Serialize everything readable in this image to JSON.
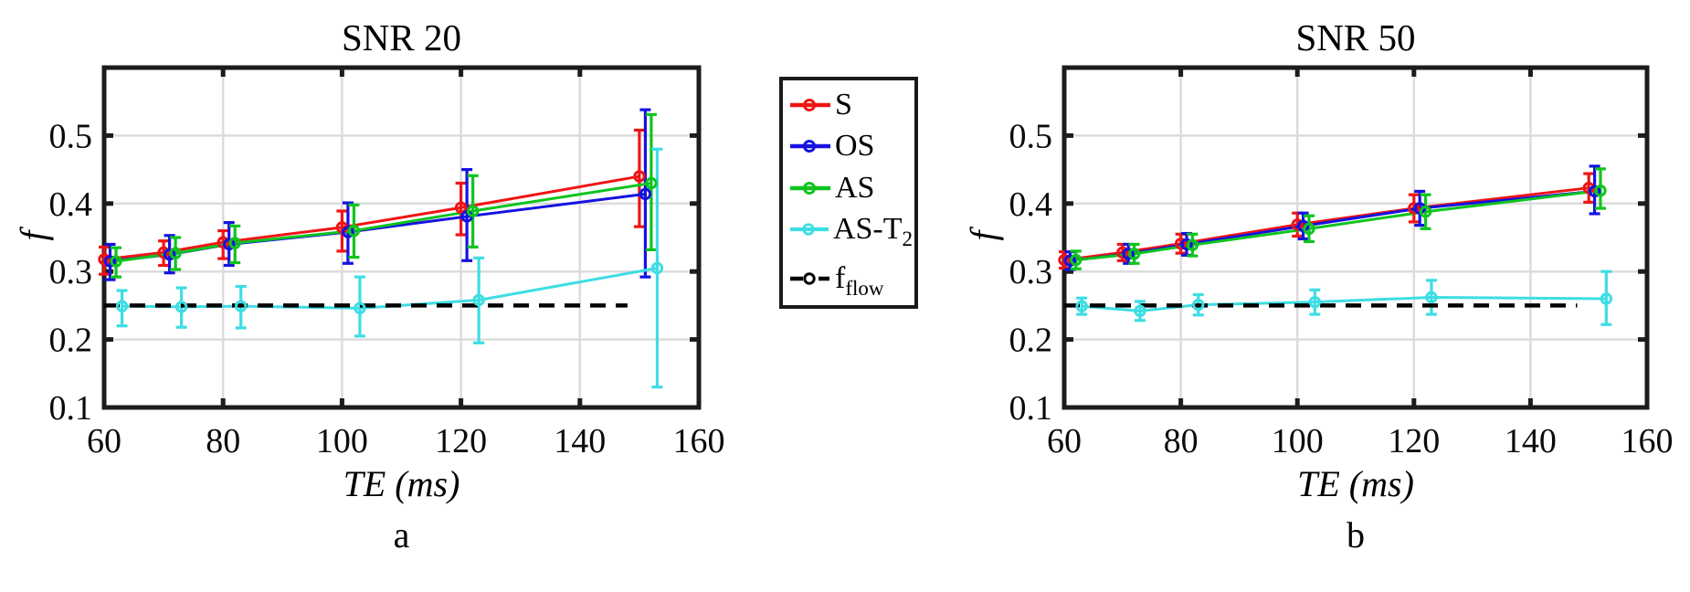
{
  "figure": {
    "background": "#ffffff",
    "grid_color": "#dcdcdc",
    "spine_color": "#1c1c1c"
  },
  "legend": {
    "items": [
      {
        "name": "S",
        "label": "S",
        "sub": "",
        "color": "#f01414",
        "line_style": "solid"
      },
      {
        "name": "OS",
        "label": "OS",
        "sub": "",
        "color": "#1512e0",
        "line_style": "solid"
      },
      {
        "name": "AS",
        "label": "AS",
        "sub": "",
        "color": "#0fc41f",
        "line_style": "solid"
      },
      {
        "name": "AS-T2",
        "label": "AS-T",
        "sub": "2",
        "color": "#3ddde4",
        "line_style": "solid"
      },
      {
        "name": "f_flow",
        "label": "f",
        "sub": "flow",
        "color": "#000000",
        "line_style": "dashed"
      }
    ]
  },
  "chart_data": [
    {
      "type": "line",
      "title": "SNR 20",
      "panel_letter": "a",
      "xlabel": "TE (ms)",
      "ylabel": "f",
      "xlim": [
        60,
        160
      ],
      "ylim": [
        0.1,
        0.6
      ],
      "xticks": [
        60,
        80,
        100,
        120,
        140,
        160
      ],
      "xtick_labels": [
        "60",
        "80",
        "100",
        "120",
        "140",
        "160"
      ],
      "yticks": [
        0.1,
        0.2,
        0.3,
        0.4,
        0.5
      ],
      "ytick_labels": [
        "0.1",
        "0.2",
        "0.3",
        "0.4",
        "0.5"
      ],
      "grid": true,
      "legend_position": "outside-right",
      "x": [
        60,
        70,
        80,
        100,
        120,
        150
      ],
      "series": [
        {
          "name": "S",
          "color": "#f01414",
          "x_offset_ms": 0,
          "y": [
            0.318,
            0.328,
            0.343,
            0.365,
            0.394,
            0.44
          ],
          "err_lo": [
            0.296,
            0.309,
            0.319,
            0.33,
            0.354,
            0.366
          ],
          "err_hi": [
            0.336,
            0.345,
            0.36,
            0.389,
            0.43,
            0.508
          ]
        },
        {
          "name": "OS",
          "color": "#1512e0",
          "x_offset_ms": 1,
          "y": [
            0.315,
            0.325,
            0.34,
            0.358,
            0.381,
            0.414
          ],
          "err_lo": [
            0.288,
            0.298,
            0.309,
            0.312,
            0.316,
            0.292
          ],
          "err_hi": [
            0.34,
            0.353,
            0.372,
            0.401,
            0.45,
            0.538
          ]
        },
        {
          "name": "AS",
          "color": "#0fc41f",
          "x_offset_ms": 2,
          "y": [
            0.315,
            0.327,
            0.342,
            0.36,
            0.389,
            0.43
          ],
          "err_lo": [
            0.292,
            0.303,
            0.313,
            0.321,
            0.336,
            0.332
          ],
          "err_hi": [
            0.335,
            0.35,
            0.367,
            0.398,
            0.441,
            0.531
          ]
        },
        {
          "name": "AS-T2",
          "color": "#3ddde4",
          "x_offset_ms": 3,
          "y": [
            0.249,
            0.248,
            0.249,
            0.246,
            0.258,
            0.305
          ],
          "err_lo": [
            0.22,
            0.218,
            0.217,
            0.205,
            0.195,
            0.13
          ],
          "err_hi": [
            0.272,
            0.276,
            0.278,
            0.292,
            0.32,
            0.48
          ]
        }
      ],
      "ref_line": {
        "name": "f_flow",
        "value": 0.25,
        "x_start": 60,
        "x_end": 148,
        "color": "#000000",
        "style": "dashed"
      }
    },
    {
      "type": "line",
      "title": "SNR 50",
      "panel_letter": "b",
      "xlabel": "TE (ms)",
      "ylabel": "f",
      "xlim": [
        60,
        160
      ],
      "ylim": [
        0.1,
        0.6
      ],
      "xticks": [
        60,
        80,
        100,
        120,
        140,
        160
      ],
      "xtick_labels": [
        "60",
        "80",
        "100",
        "120",
        "140",
        "160"
      ],
      "yticks": [
        0.1,
        0.2,
        0.3,
        0.4,
        0.5
      ],
      "ytick_labels": [
        "0.1",
        "0.2",
        "0.3",
        "0.4",
        "0.5"
      ],
      "grid": true,
      "x": [
        60,
        70,
        80,
        100,
        120,
        150
      ],
      "series": [
        {
          "name": "S",
          "color": "#f01414",
          "x_offset_ms": 0,
          "y": [
            0.317,
            0.328,
            0.341,
            0.369,
            0.393,
            0.423
          ],
          "err_lo": [
            0.305,
            0.316,
            0.327,
            0.352,
            0.373,
            0.402
          ],
          "err_hi": [
            0.329,
            0.34,
            0.355,
            0.386,
            0.413,
            0.444
          ]
        },
        {
          "name": "OS",
          "color": "#1512e0",
          "x_offset_ms": 1,
          "y": [
            0.316,
            0.326,
            0.34,
            0.367,
            0.393,
            0.418
          ],
          "err_lo": [
            0.303,
            0.312,
            0.324,
            0.348,
            0.368,
            0.385
          ],
          "err_hi": [
            0.329,
            0.34,
            0.356,
            0.386,
            0.418,
            0.455
          ]
        },
        {
          "name": "AS",
          "color": "#0fc41f",
          "x_offset_ms": 2,
          "y": [
            0.317,
            0.326,
            0.339,
            0.363,
            0.388,
            0.419
          ],
          "err_lo": [
            0.304,
            0.312,
            0.323,
            0.344,
            0.363,
            0.393
          ],
          "err_hi": [
            0.33,
            0.34,
            0.355,
            0.382,
            0.413,
            0.451
          ]
        },
        {
          "name": "AS-T2",
          "color": "#3ddde4",
          "x_offset_ms": 3,
          "y": [
            0.249,
            0.242,
            0.251,
            0.255,
            0.262,
            0.26
          ],
          "err_lo": [
            0.237,
            0.228,
            0.236,
            0.237,
            0.237,
            0.222
          ],
          "err_hi": [
            0.261,
            0.256,
            0.266,
            0.273,
            0.287,
            0.3
          ]
        }
      ],
      "ref_line": {
        "name": "f_flow",
        "value": 0.25,
        "x_start": 60,
        "x_end": 148,
        "color": "#000000",
        "style": "dashed"
      }
    }
  ]
}
